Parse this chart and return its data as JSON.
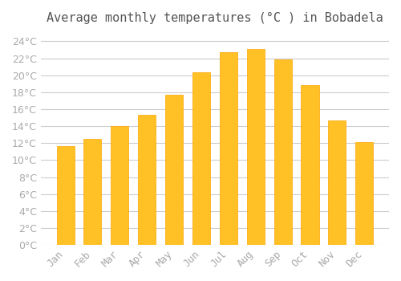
{
  "title": "Average monthly temperatures (°C ) in Bobadela",
  "months": [
    "Jan",
    "Feb",
    "Mar",
    "Apr",
    "May",
    "Jun",
    "Jul",
    "Aug",
    "Sep",
    "Oct",
    "Nov",
    "Dec"
  ],
  "values": [
    11.6,
    12.5,
    14.0,
    15.3,
    17.7,
    20.4,
    22.7,
    23.1,
    21.9,
    18.8,
    14.7,
    12.1
  ],
  "bar_color": "#FFC125",
  "bar_edge_color": "#FFA500",
  "background_color": "#FFFFFF",
  "grid_color": "#CCCCCC",
  "tick_color": "#AAAAAA",
  "title_color": "#555555",
  "label_color": "#AAAAAA",
  "ylim": [
    0,
    25
  ],
  "ytick_step": 2,
  "title_fontsize": 11,
  "tick_fontsize": 9
}
